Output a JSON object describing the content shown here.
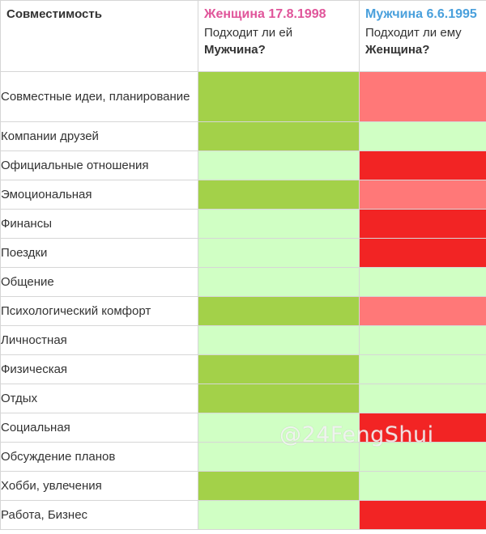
{
  "header": {
    "label": "Совместимость",
    "woman": {
      "title": "Женщина 17.8.1998",
      "question": "Подходит ли ей",
      "target": "Мужчина?"
    },
    "man": {
      "title": "Мужчина 6.6.1995",
      "question": "Подходит ли ему",
      "target": "Женщина?"
    }
  },
  "colors": {
    "woman_title": "#e0559a",
    "man_title": "#4aa0dc",
    "high": "#a3d149",
    "medium": "#d0ffc4",
    "low": "#ff7878",
    "bad": "#f22424"
  },
  "rows": [
    {
      "label": "Совместные идеи, планирование",
      "woman": "high",
      "man": "low"
    },
    {
      "label": "Компании друзей",
      "woman": "high",
      "man": "medium"
    },
    {
      "label": "Официальные отношения",
      "woman": "medium",
      "man": "bad"
    },
    {
      "label": "Эмоциональная",
      "woman": "high",
      "man": "low"
    },
    {
      "label": "Финансы",
      "woman": "medium",
      "man": "bad"
    },
    {
      "label": "Поездки",
      "woman": "medium",
      "man": "bad"
    },
    {
      "label": "Общение",
      "woman": "medium",
      "man": "medium"
    },
    {
      "label": "Психологический комфорт",
      "woman": "high",
      "man": "low"
    },
    {
      "label": "Личностная",
      "woman": "medium",
      "man": "medium"
    },
    {
      "label": "Физическая",
      "woman": "high",
      "man": "medium"
    },
    {
      "label": "Отдых",
      "woman": "high",
      "man": "medium"
    },
    {
      "label": "Социальная",
      "woman": "medium",
      "man": "bad"
    },
    {
      "label": "Обсуждение планов",
      "woman": "medium",
      "man": "medium"
    },
    {
      "label": "Хобби, увлечения",
      "woman": "high",
      "man": "medium"
    },
    {
      "label": "Работа, Бизнес",
      "woman": "medium",
      "man": "bad"
    }
  ],
  "watermark": "@24FengShui"
}
